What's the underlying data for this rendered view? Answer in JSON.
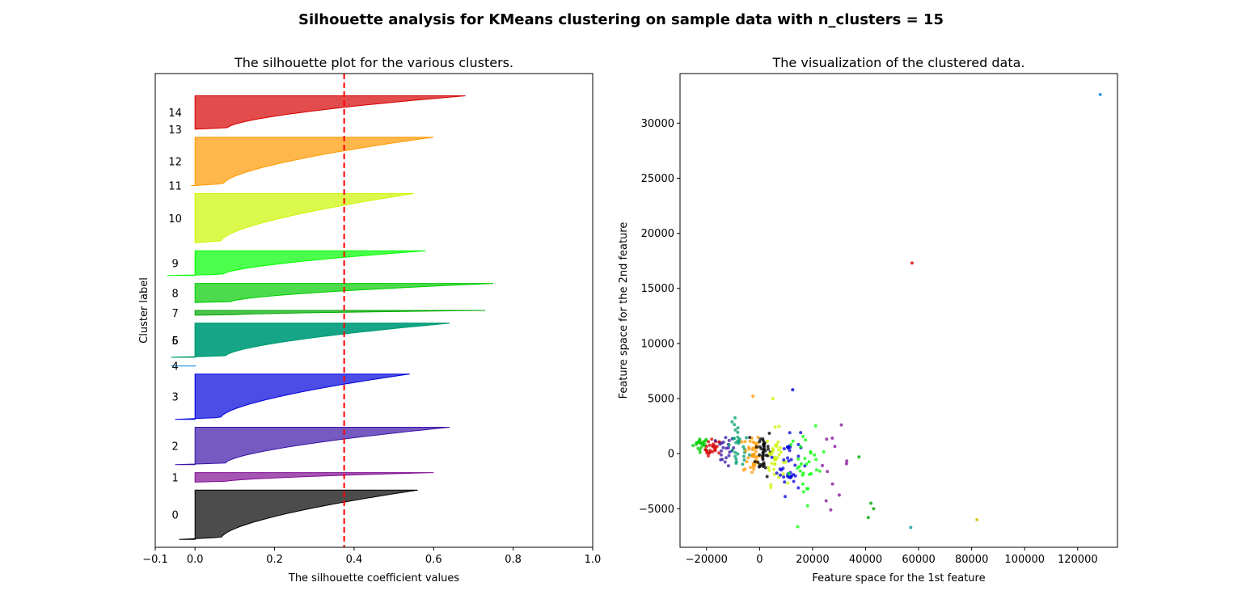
{
  "suptitle": "Silhouette analysis for KMeans clustering on sample data with n_clusters = 15",
  "chart_data": [
    {
      "type": "area",
      "title": "The silhouette plot for the various clusters.",
      "xlabel": "The silhouette coefficient values",
      "ylabel": "Cluster label",
      "xlim": [
        -0.1,
        1.0
      ],
      "ylim": [
        0,
        596
      ],
      "xticks": [
        -0.1,
        0.0,
        0.2,
        0.4,
        0.6,
        0.8,
        1.0
      ],
      "xtick_labels": [
        "−0.1",
        "0.0",
        "0.2",
        "0.4",
        "0.6",
        "0.8",
        "1.0"
      ],
      "average_silhouette": 0.375,
      "average_line_color": "#ff0000",
      "clusters": [
        {
          "label": "0",
          "color": "#000000",
          "start": 10,
          "end": 72,
          "max": 0.56,
          "min": -0.04
        },
        {
          "label": "1",
          "color": "#7f0d91",
          "start": 82,
          "end": 94,
          "max": 0.6,
          "min": 0.0
        },
        {
          "label": "2",
          "color": "#3a14a6",
          "start": 104,
          "end": 151,
          "max": 0.64,
          "min": -0.05
        },
        {
          "label": "3",
          "color": "#0000db",
          "start": 161,
          "end": 218,
          "max": 0.54,
          "min": -0.05
        },
        {
          "label": "4",
          "color": "#0088dd",
          "start": 228,
          "end": 229,
          "max": 0.0,
          "min": -0.06
        },
        {
          "label": "5",
          "color": "#009d9b",
          "start": 239,
          "end": 282,
          "max": 0.64,
          "min": -0.06
        },
        {
          "label": "6",
          "color": "#009d70",
          "start": 239,
          "end": 282,
          "max": 0.64,
          "min": -0.06
        },
        {
          "label": "7",
          "color": "#00a800",
          "start": 292,
          "end": 298,
          "max": 0.73,
          "min": 0.0
        },
        {
          "label": "8",
          "color": "#00cc00",
          "start": 308,
          "end": 332,
          "max": 0.75,
          "min": 0.0
        },
        {
          "label": "9",
          "color": "#00ff00",
          "start": 342,
          "end": 373,
          "max": 0.58,
          "min": -0.07
        },
        {
          "label": "10",
          "color": "#ccf600",
          "start": 383,
          "end": 445,
          "max": 0.55,
          "min": 0.0
        },
        {
          "label": "11",
          "color": "#ffc400",
          "start": 455,
          "end": 455,
          "max": 0.0,
          "min": -0.01
        },
        {
          "label": "12",
          "color": "#ff9900",
          "start": 455,
          "end": 516,
          "max": 0.6,
          "min": -0.01
        },
        {
          "label": "13",
          "color": "#ff5500",
          "start": 526,
          "end": 526,
          "max": 0.0,
          "min": 0.0
        },
        {
          "label": "14",
          "color": "#d60000",
          "start": 526,
          "end": 568,
          "max": 0.68,
          "min": 0.0
        }
      ]
    },
    {
      "type": "scatter",
      "title": "The visualization of the clustered data.",
      "xlabel": "Feature space for the 1st feature",
      "ylabel": "Feature space for the 2nd feature",
      "xlim": [
        -30000,
        135000
      ],
      "ylim": [
        -8500,
        34500
      ],
      "xticks": [
        -20000,
        0,
        20000,
        40000,
        60000,
        80000,
        100000,
        120000
      ],
      "xtick_labels": [
        "−20000",
        "0",
        "20000",
        "40000",
        "60000",
        "80000",
        "100000",
        "120000"
      ],
      "yticks": [
        -5000,
        0,
        5000,
        10000,
        15000,
        20000,
        25000,
        30000
      ],
      "ytick_labels": [
        "−5000",
        "0",
        "5000",
        "10000",
        "15000",
        "20000",
        "25000",
        "30000"
      ],
      "outliers": [
        {
          "x": 128500,
          "y": 32600,
          "color": "#0088dd"
        },
        {
          "x": 57500,
          "y": 17300,
          "color": "#d60000"
        },
        {
          "x": 57000,
          "y": -6700,
          "color": "#009d9b"
        },
        {
          "x": 82000,
          "y": -6000,
          "color": "#ccc000"
        },
        {
          "x": 42000,
          "y": -4500,
          "color": "#00a800"
        },
        {
          "x": 43000,
          "y": -5000,
          "color": "#00a800"
        },
        {
          "x": 41000,
          "y": -5800,
          "color": "#00a800"
        },
        {
          "x": 37500,
          "y": -300,
          "color": "#00a800"
        },
        {
          "x": 12500,
          "y": 5800,
          "color": "#0000db"
        },
        {
          "x": -2500,
          "y": 5200,
          "color": "#ff9900"
        },
        {
          "x": 5000,
          "y": 5000,
          "color": "#ccf600"
        }
      ],
      "cluster_groups": [
        {
          "color": "#00cc00",
          "cx": -22000,
          "cy": 900,
          "sx": 1500,
          "sy": 300,
          "n": 22
        },
        {
          "color": "#d60000",
          "cx": -17500,
          "cy": 400,
          "sx": 1500,
          "sy": 450,
          "n": 25
        },
        {
          "color": "#3a14a6",
          "cx": -13000,
          "cy": 300,
          "sx": 1800,
          "sy": 700,
          "n": 22
        },
        {
          "color": "#009d70",
          "cx": -8000,
          "cy": 500,
          "sx": 2000,
          "sy": 1100,
          "n": 30
        },
        {
          "color": "#ff9900",
          "cx": -3000,
          "cy": 0,
          "sx": 1600,
          "sy": 1000,
          "n": 40
        },
        {
          "color": "#000000",
          "cx": 1500,
          "cy": 200,
          "sx": 1500,
          "sy": 1100,
          "n": 40
        },
        {
          "color": "#ccf600",
          "cx": 6000,
          "cy": -300,
          "sx": 1700,
          "sy": 1200,
          "n": 35
        },
        {
          "color": "#0000db",
          "cx": 11000,
          "cy": -700,
          "sx": 2200,
          "sy": 1500,
          "n": 38
        },
        {
          "color": "#00ff00",
          "cx": 18000,
          "cy": -1200,
          "sx": 3500,
          "sy": 1600,
          "n": 32
        },
        {
          "color": "#7f0d91",
          "cx": 28000,
          "cy": -900,
          "sx": 3000,
          "sy": 1600,
          "n": 12
        }
      ]
    }
  ]
}
